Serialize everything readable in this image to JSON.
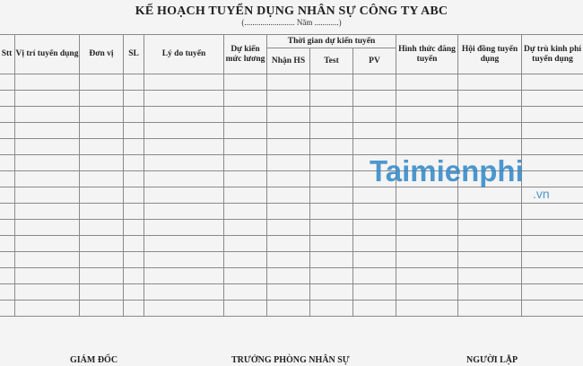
{
  "document": {
    "title": "KẾ HOẠCH TUYỂN DỤNG NHÂN SỰ CÔNG TY ABC",
    "subtitle": "(......................... Năm ............)"
  },
  "table": {
    "headers": {
      "stt": "Stt",
      "vi_tri": "Vị trí tuyển dụng",
      "don_vi": "Đơn vị",
      "sl": "SL",
      "ly_do": "Lý do tuyển",
      "muc_luong": "Dự kiến mức lương",
      "thoi_gian": "Thời gian dự kiến tuyển",
      "nhan_hs": "Nhận HS",
      "test": "Test",
      "pv": "PV",
      "hinh_thuc": "Hình thức đăng tuyển",
      "hoi_dong": "Hội đồng tuyển dụng",
      "du_tru": "Dự trù kinh phí tuyển dụng"
    },
    "empty_rows": 15
  },
  "signatures": {
    "director": "GIÁM ĐỐC",
    "hr_head": "TRƯỞNG PHÒNG NHÂN SỰ",
    "preparer": "NGƯỜI LẬP"
  },
  "watermark": {
    "brand": "aimienphi",
    "suffix": ".vn",
    "color": "#2f87c8"
  }
}
